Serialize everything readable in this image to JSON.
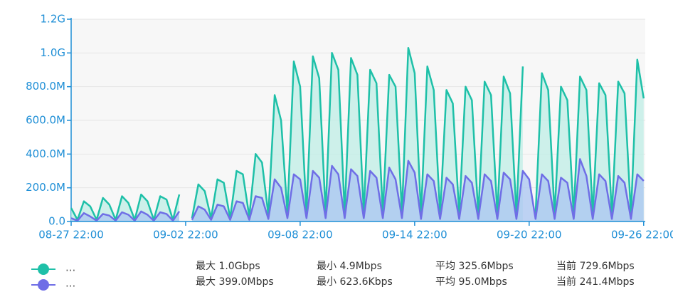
{
  "chart_data": {
    "type": "area",
    "x": [
      "08-27 22:00",
      "08-28 06:00",
      "08-28 14:00",
      "08-28 22:00",
      "08-29 06:00",
      "08-29 14:00",
      "08-29 22:00",
      "08-30 06:00",
      "08-30 14:00",
      "08-30 22:00",
      "08-31 06:00",
      "08-31 14:00",
      "08-31 22:00",
      "09-01 06:00",
      "09-01 14:00",
      "09-01 22:00",
      "09-02 06:00",
      "09-02 14:00",
      "09-02 22:00",
      "09-03 06:00",
      "09-03 14:00",
      "09-03 22:00",
      "09-04 06:00",
      "09-04 14:00",
      "09-04 22:00",
      "09-05 06:00",
      "09-05 14:00",
      "09-05 22:00",
      "09-06 06:00",
      "09-06 14:00",
      "09-06 22:00",
      "09-07 06:00",
      "09-07 14:00",
      "09-07 22:00",
      "09-08 06:00",
      "09-08 14:00",
      "09-08 22:00",
      "09-09 06:00",
      "09-09 14:00",
      "09-09 22:00",
      "09-10 06:00",
      "09-10 14:00",
      "09-10 22:00",
      "09-11 06:00",
      "09-11 14:00",
      "09-11 22:00",
      "09-12 06:00",
      "09-12 14:00",
      "09-12 22:00",
      "09-13 06:00",
      "09-13 14:00",
      "09-13 22:00",
      "09-14 06:00",
      "09-14 14:00",
      "09-14 22:00",
      "09-15 06:00",
      "09-15 14:00",
      "09-15 22:00",
      "09-16 06:00",
      "09-16 14:00",
      "09-16 22:00",
      "09-17 06:00",
      "09-17 14:00",
      "09-17 22:00",
      "09-18 06:00",
      "09-18 14:00",
      "09-18 22:00",
      "09-19 06:00",
      "09-19 14:00",
      "09-19 22:00",
      "09-20 06:00",
      "09-20 14:00",
      "09-20 22:00",
      "09-21 06:00",
      "09-21 14:00",
      "09-21 22:00",
      "09-22 06:00",
      "09-22 14:00",
      "09-22 22:00",
      "09-23 06:00",
      "09-23 14:00",
      "09-23 22:00",
      "09-24 06:00",
      "09-24 14:00",
      "09-24 22:00",
      "09-25 06:00",
      "09-25 14:00",
      "09-25 22:00",
      "09-26 06:00",
      "09-26 14:00",
      "09-26 22:00"
    ],
    "series": [
      {
        "name": "...",
        "color": "#1ec0a8",
        "fill": "#bfeee6",
        "stats": [
          "最大 1.0Gbps",
          "最小 4.9Mbps",
          "平均 325.6Mbps",
          "当前 729.6Mbps"
        ],
        "values": [
          80,
          10,
          120,
          90,
          10,
          140,
          100,
          10,
          150,
          110,
          10,
          160,
          120,
          10,
          150,
          130,
          10,
          160,
          null,
          20,
          220,
          180,
          20,
          250,
          230,
          20,
          300,
          280,
          30,
          400,
          350,
          40,
          750,
          600,
          50,
          950,
          800,
          50,
          980,
          850,
          50,
          1000,
          900,
          50,
          970,
          870,
          50,
          900,
          820,
          50,
          870,
          800,
          50,
          1030,
          880,
          40,
          920,
          780,
          40,
          780,
          700,
          40,
          800,
          720,
          40,
          830,
          750,
          40,
          860,
          760,
          40,
          920,
          null,
          40,
          880,
          780,
          40,
          800,
          720,
          40,
          860,
          780,
          40,
          820,
          750,
          40,
          830,
          760,
          40,
          960,
          730
        ]
      },
      {
        "name": "...",
        "color": "#6f6ee6",
        "fill": "#a9c6f2",
        "stats": [
          "最大 399.0Mbps",
          "最小 623.6Kbps",
          "平均 95.0Mbps",
          "当前 241.4Mbps"
        ],
        "values": [
          20,
          5,
          50,
          30,
          5,
          45,
          35,
          5,
          55,
          40,
          5,
          60,
          40,
          5,
          55,
          45,
          5,
          60,
          null,
          10,
          90,
          70,
          10,
          100,
          90,
          10,
          120,
          110,
          10,
          150,
          140,
          15,
          250,
          200,
          20,
          280,
          250,
          20,
          300,
          260,
          20,
          330,
          280,
          20,
          310,
          270,
          20,
          300,
          260,
          20,
          320,
          250,
          20,
          360,
          290,
          15,
          280,
          240,
          15,
          260,
          220,
          15,
          270,
          230,
          15,
          280,
          240,
          15,
          290,
          250,
          15,
          300,
          250,
          15,
          280,
          240,
          15,
          260,
          230,
          15,
          370,
          270,
          15,
          280,
          240,
          15,
          270,
          230,
          15,
          280,
          241
        ]
      }
    ],
    "xlim": [
      "08-27 22:00",
      "09-27 00:00"
    ],
    "xticks": [
      "08-27 22:00",
      "09-02 22:00",
      "09-08 22:00",
      "09-14 22:00",
      "09-20 22:00",
      "09-26 22:00"
    ],
    "ylim": [
      0,
      1200
    ],
    "yticks": [
      {
        "value": 0,
        "label": "0.0"
      },
      {
        "value": 200,
        "label": "200.0M"
      },
      {
        "value": 400,
        "label": "400.0M"
      },
      {
        "value": 600,
        "label": "600.0M"
      },
      {
        "value": 800,
        "label": "800.0M"
      },
      {
        "value": 1000,
        "label": "1.0G"
      },
      {
        "value": 1200,
        "label": "1.2G"
      }
    ],
    "grid": true
  }
}
